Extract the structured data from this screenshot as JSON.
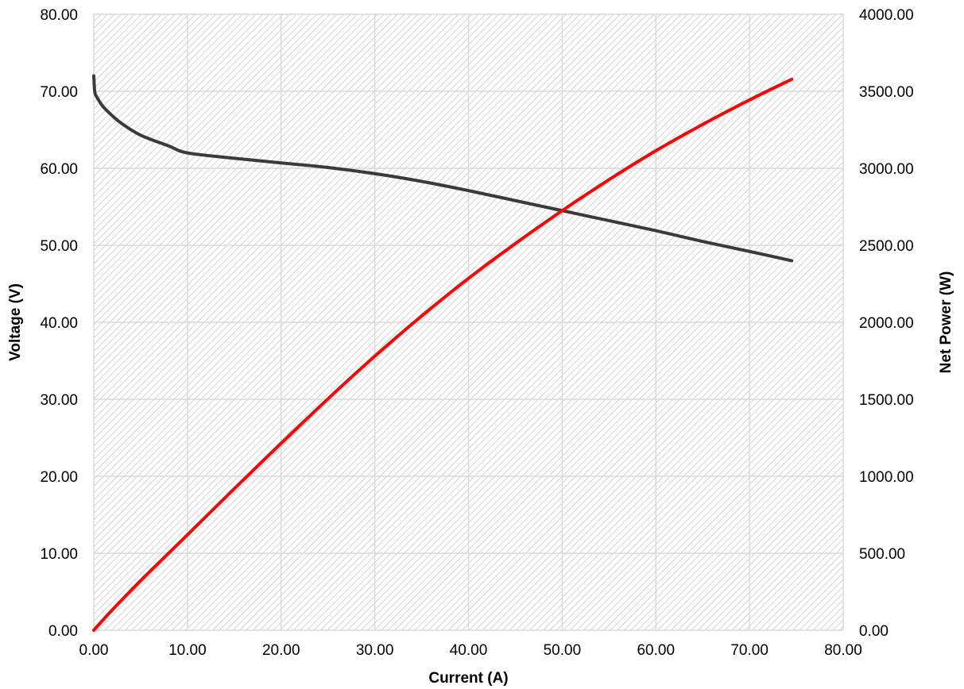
{
  "chart_data": {
    "type": "line",
    "title": "",
    "xlabel": "Current (A)",
    "ylabel": "Voltage (V)",
    "y2label": "Net Power (W)",
    "xlim": [
      0,
      80
    ],
    "ylim": [
      0,
      80
    ],
    "y2lim": [
      0,
      4000
    ],
    "grid": true,
    "plot_background": "hatched light gray",
    "x_ticks": [
      "0.00",
      "10.00",
      "20.00",
      "30.00",
      "40.00",
      "50.00",
      "60.00",
      "70.00",
      "80.00"
    ],
    "y_ticks": [
      "0.00",
      "10.00",
      "20.00",
      "30.00",
      "40.00",
      "50.00",
      "60.00",
      "70.00",
      "80.00"
    ],
    "y2_ticks": [
      "0.00",
      "500.00",
      "1000.00",
      "1500.00",
      "2000.00",
      "2500.00",
      "3000.00",
      "3500.00",
      "4000.00"
    ],
    "series": [
      {
        "axis": "left",
        "color": "#3a3a3a",
        "x": [
          0.0,
          0.1,
          0.3,
          1,
          2,
          3,
          5,
          8,
          10,
          15,
          20,
          25,
          30,
          35,
          40,
          45,
          50,
          55,
          60,
          65,
          70,
          74.5
        ],
        "y": [
          72.0,
          70.0,
          69.3,
          68.0,
          66.8,
          65.8,
          64.3,
          62.9,
          62.0,
          61.3,
          60.7,
          60.1,
          59.3,
          58.3,
          57.1,
          55.8,
          54.5,
          53.2,
          51.9,
          50.5,
          49.2,
          48.0
        ]
      },
      {
        "axis": "right",
        "color": "#ff0000",
        "x": [
          0,
          1,
          2,
          5,
          10,
          15,
          20,
          25,
          30,
          35,
          40,
          45,
          50,
          55,
          60,
          65,
          70,
          74.5
        ],
        "y": [
          0,
          68,
          134,
          322,
          620,
          920,
          1214,
          1503,
          1780,
          2041,
          2285,
          2511,
          2725,
          2926,
          3114,
          3285,
          3444,
          3578
        ]
      }
    ]
  }
}
